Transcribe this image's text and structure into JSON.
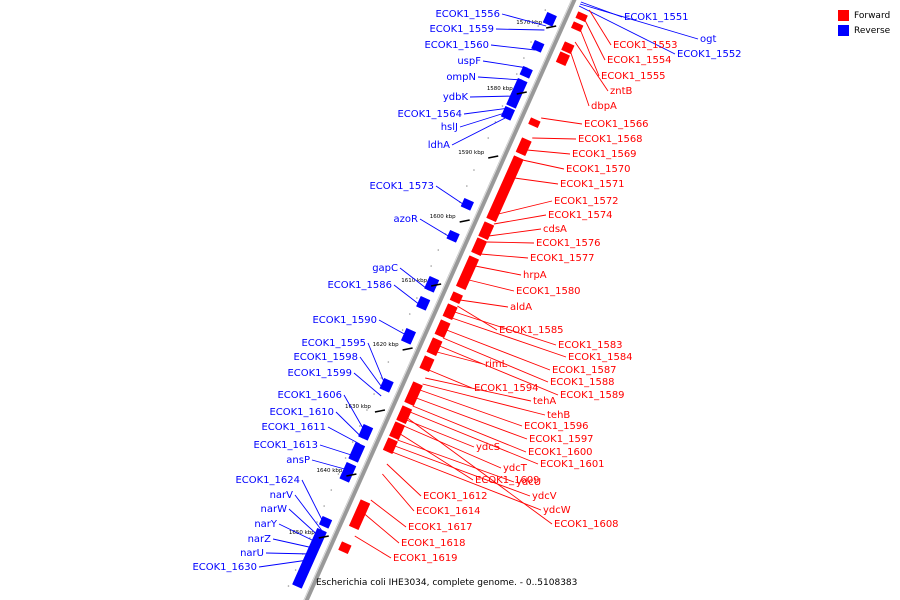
{
  "legend": {
    "forward_label": "Forward",
    "reverse_label": "Reverse",
    "forward_color": "#ff0000",
    "reverse_color": "#0000ff"
  },
  "footer": {
    "caption": "Escherichia coli IHE3034, complete genome. - 0..5108383"
  },
  "colors": {
    "backbone": "#999999",
    "tick": "#000000"
  },
  "ticks": [
    "1570 kbp",
    "1580 kbp",
    "1590 kbp",
    "1600 kbp",
    "1610 kbp",
    "1620 kbp",
    "1630 kbp",
    "1640 kbp",
    "1650 kbp"
  ],
  "reverse_genes": [
    "ECOK1_1556",
    "ECOK1_1559",
    "ECOK1_1560",
    "uspF",
    "ompN",
    "ydbK",
    "ECOK1_1564",
    "hslJ",
    "ldhA",
    "ECOK1_1573",
    "azoR",
    "gapC",
    "ECOK1_1586",
    "ECOK1_1590",
    "ECOK1_1595",
    "ECOK1_1598",
    "ECOK1_1599",
    "ECOK1_1606",
    "ECOK1_1610",
    "ECOK1_1611",
    "ECOK1_1613",
    "ansP",
    "ECOK1_1624",
    "narV",
    "narW",
    "narY",
    "narZ",
    "narU",
    "ECOK1_1630"
  ],
  "reverse_genes_top": [
    "ECOK1_1551",
    "ogt",
    "ECOK1_1552"
  ],
  "forward_genes": [
    "ECOK1_1553",
    "ECOK1_1554",
    "ECOK1_1555",
    "zntB",
    "dbpA",
    "ECOK1_1566",
    "ECOK1_1568",
    "ECOK1_1569",
    "ECOK1_1570",
    "ECOK1_1571",
    "ECOK1_1572",
    "ECOK1_1574",
    "cdsA",
    "ECOK1_1576",
    "ECOK1_1577",
    "hrpA",
    "ECOK1_1580",
    "aldA",
    "ECOK1_1585",
    "ECOK1_1583",
    "ECOK1_1584",
    "rimL",
    "ECOK1_1587",
    "ECOK1_1588",
    "ECOK1_1594",
    "ECOK1_1589",
    "tehA",
    "tehB",
    "ECOK1_1596",
    "ECOK1_1597",
    "ydcS",
    "ECOK1_1600",
    "ECOK1_1601",
    "ydcT",
    "ECOK1_1609",
    "ydcU",
    "ECOK1_1612",
    "ydcV",
    "ECOK1_1614",
    "ydcW",
    "ECOK1_1608",
    "ECOK1_1617",
    "ECOK1_1618",
    "ECOK1_1619"
  ]
}
